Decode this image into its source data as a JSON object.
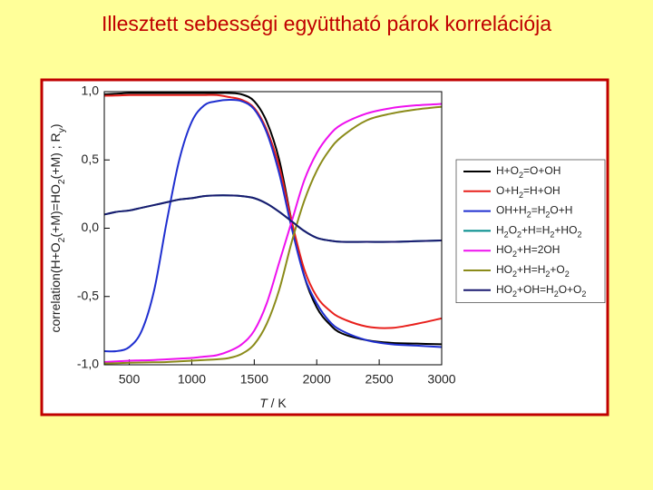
{
  "chart_data": {
    "type": "line",
    "title": "Illesztett sebességi együttható párok korrelációja",
    "x_label": "T / K",
    "y_label": "correlation(H+O2(+M)=HO2(+M) ; Ry)",
    "xlim": [
      300,
      3000
    ],
    "ylim": [
      -1,
      1
    ],
    "xticks": [
      500,
      1000,
      1500,
      2000,
      2500,
      3000
    ],
    "yticks": [
      {
        "value": -1,
        "label": "-1,0"
      },
      {
        "value": -0.5,
        "label": "-0,5"
      },
      {
        "value": 0,
        "label": "0,0"
      },
      {
        "value": 0.5,
        "label": "0,5"
      },
      {
        "value": 1,
        "label": "1,0"
      }
    ],
    "legend_position": "right",
    "x": [
      300,
      400,
      500,
      600,
      700,
      800,
      900,
      1000,
      1100,
      1200,
      1300,
      1400,
      1500,
      1600,
      1700,
      1800,
      1900,
      2000,
      2100,
      2200,
      2400,
      2600,
      2800,
      3000
    ],
    "series": [
      {
        "name": "H+O2=O+OH",
        "color": "#000000",
        "values": [
          0.98,
          0.985,
          0.99,
          0.99,
          0.99,
          0.99,
          0.99,
          0.99,
          0.99,
          0.99,
          0.99,
          0.98,
          0.93,
          0.78,
          0.5,
          0.05,
          -0.35,
          -0.58,
          -0.7,
          -0.77,
          -0.82,
          -0.84,
          -0.845,
          -0.85
        ]
      },
      {
        "name": "O+H2=H+OH",
        "color": "#e8201c",
        "values": [
          0.97,
          0.972,
          0.975,
          0.975,
          0.975,
          0.975,
          0.975,
          0.975,
          0.975,
          0.975,
          0.96,
          0.94,
          0.88,
          0.72,
          0.45,
          0.05,
          -0.3,
          -0.5,
          -0.6,
          -0.66,
          -0.72,
          -0.73,
          -0.7,
          -0.66
        ]
      },
      {
        "name": "OH+H2=H2O+H",
        "color": "#1f2fd0",
        "values": [
          -0.9,
          -0.9,
          -0.87,
          -0.75,
          -0.45,
          0.05,
          0.5,
          0.78,
          0.9,
          0.93,
          0.94,
          0.93,
          0.87,
          0.7,
          0.4,
          0.0,
          -0.35,
          -0.55,
          -0.68,
          -0.75,
          -0.82,
          -0.85,
          -0.86,
          -0.87
        ]
      },
      {
        "name": "H2O2+H=H2+HO2",
        "color": "#008b8b",
        "values": [
          0.1,
          0.12,
          0.13,
          0.15,
          0.17,
          0.19,
          0.21,
          0.22,
          0.235,
          0.24,
          0.24,
          0.235,
          0.22,
          0.18,
          0.12,
          0.05,
          -0.02,
          -0.07,
          -0.09,
          -0.1,
          -0.1,
          -0.1,
          -0.095,
          -0.09
        ]
      },
      {
        "name": "HO2+H=2OH",
        "color": "#ee10ee",
        "values": [
          -0.98,
          -0.975,
          -0.97,
          -0.968,
          -0.965,
          -0.96,
          -0.955,
          -0.95,
          -0.94,
          -0.93,
          -0.9,
          -0.85,
          -0.75,
          -0.55,
          -0.25,
          0.05,
          0.35,
          0.55,
          0.68,
          0.76,
          0.84,
          0.88,
          0.9,
          0.91
        ]
      },
      {
        "name": "HO2+H=H2+O2",
        "color": "#8b8b1a",
        "values": [
          -0.99,
          -0.988,
          -0.985,
          -0.983,
          -0.982,
          -0.98,
          -0.975,
          -0.97,
          -0.965,
          -0.96,
          -0.95,
          -0.92,
          -0.85,
          -0.7,
          -0.45,
          -0.1,
          0.2,
          0.42,
          0.57,
          0.67,
          0.79,
          0.84,
          0.87,
          0.89
        ]
      },
      {
        "name": "HO2+OH=H2O+O2",
        "color": "#1a1a70",
        "values": [
          0.1,
          0.12,
          0.13,
          0.15,
          0.17,
          0.19,
          0.21,
          0.22,
          0.235,
          0.24,
          0.24,
          0.235,
          0.22,
          0.18,
          0.12,
          0.05,
          -0.02,
          -0.07,
          -0.09,
          -0.1,
          -0.1,
          -0.1,
          -0.095,
          -0.09
        ]
      }
    ]
  }
}
